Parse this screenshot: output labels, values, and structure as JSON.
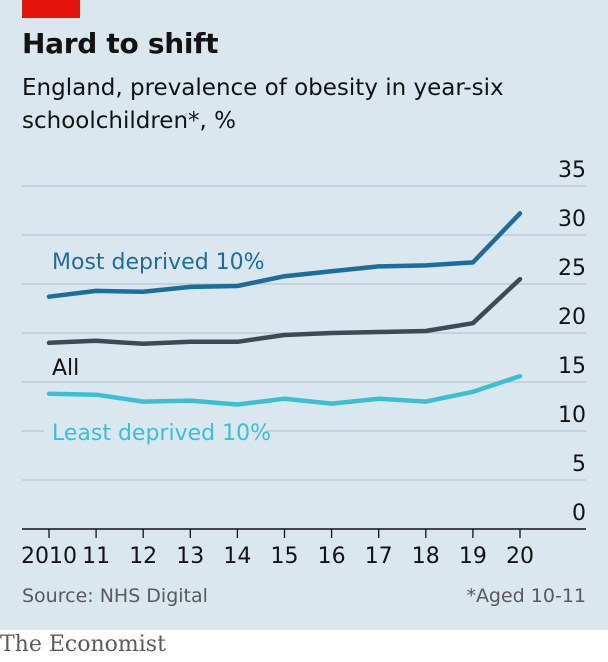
{
  "header": {
    "title": "Hard to shift",
    "subtitle": "England, prevalence of obesity in year-six schoolchildren*, %"
  },
  "footer": {
    "source": "Source: NHS Digital",
    "note": "*Aged 10-11",
    "brand": "The Economist"
  },
  "colors": {
    "background": "#dbe7ef",
    "accent": "#e3120b",
    "most_deprived": "#1c6d9e",
    "all": "#3b4b55",
    "least_deprived": "#39c0d4"
  },
  "chart_data": {
    "type": "line",
    "x": [
      "2010",
      "11",
      "12",
      "13",
      "14",
      "15",
      "16",
      "17",
      "18",
      "19",
      "20"
    ],
    "ylim": [
      0,
      35
    ],
    "yticks": [
      0,
      5,
      10,
      15,
      20,
      25,
      30,
      35
    ],
    "y_axis_position": "right",
    "grid": true,
    "series": [
      {
        "name": "Most deprived 10%",
        "color": "#1c6d9e",
        "values": [
          23.7,
          24.3,
          24.2,
          24.7,
          24.8,
          25.8,
          26.3,
          26.8,
          26.9,
          27.2,
          32.2
        ]
      },
      {
        "name": "All",
        "color": "#3b4b55",
        "values": [
          19.0,
          19.2,
          18.9,
          19.1,
          19.1,
          19.8,
          20.0,
          20.1,
          20.2,
          21.0,
          25.5
        ]
      },
      {
        "name": "Least deprived 10%",
        "color": "#39c0d4",
        "values": [
          13.8,
          13.7,
          13.0,
          13.1,
          12.7,
          13.3,
          12.8,
          13.3,
          13.0,
          14.0,
          15.6
        ]
      }
    ]
  }
}
